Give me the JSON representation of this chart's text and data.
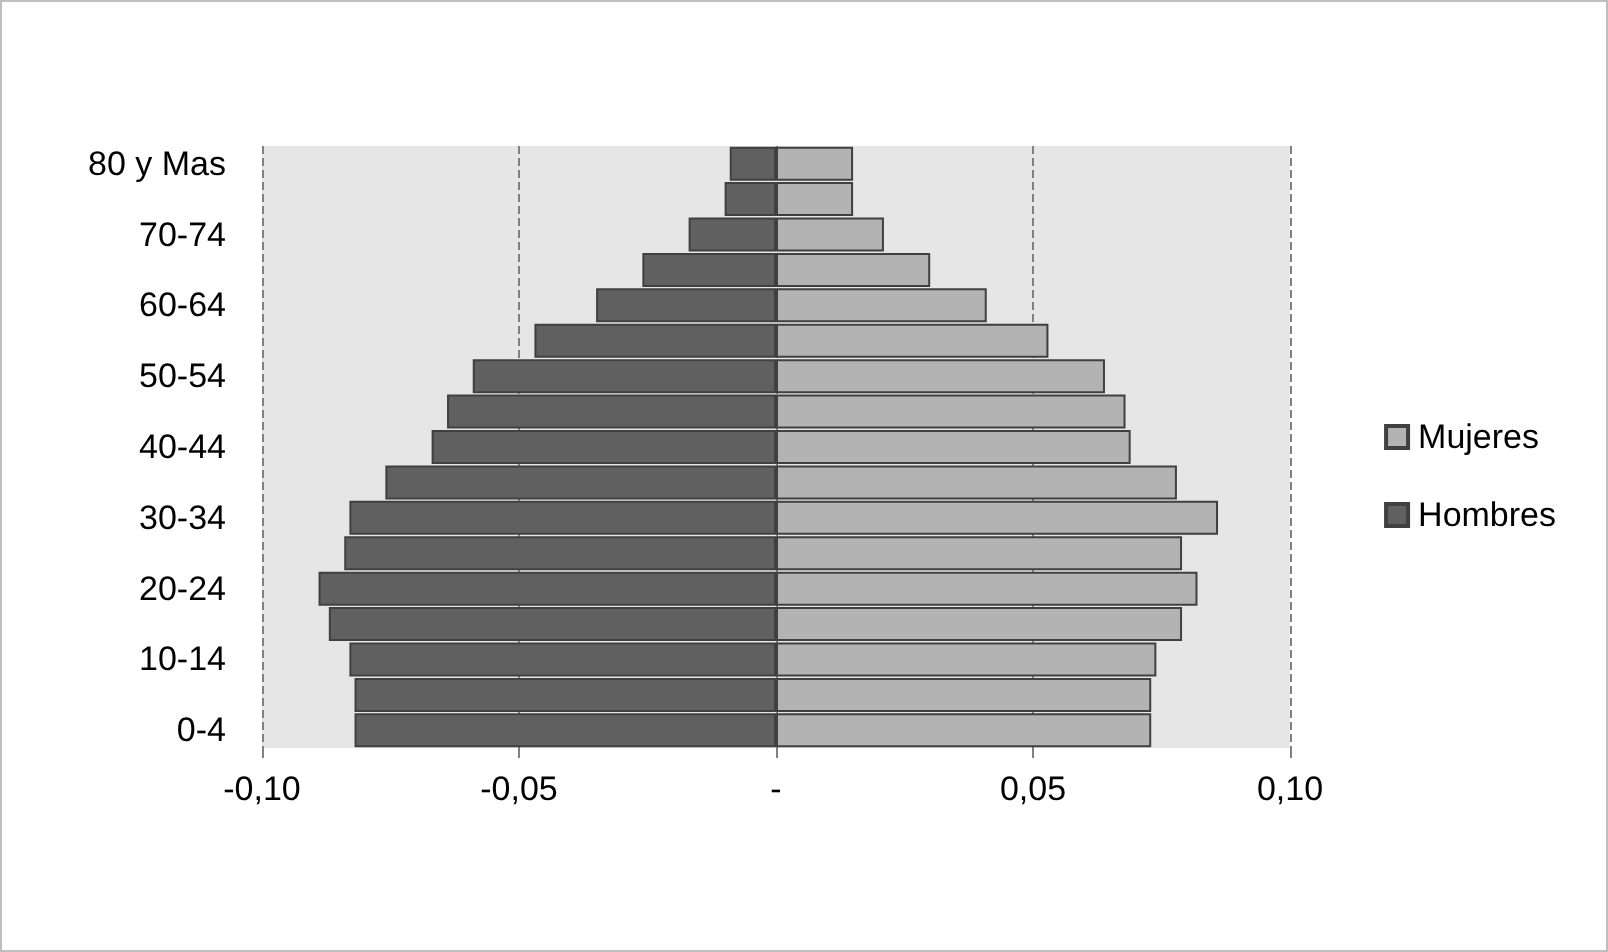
{
  "chart_data": {
    "type": "bar",
    "orientation": "horizontal",
    "categories": [
      "80 y Mas",
      null,
      "70-74",
      null,
      "60-64",
      null,
      "50-54",
      null,
      "40-44",
      null,
      "30-34",
      null,
      "20-24",
      null,
      "10-14",
      null,
      "0-4"
    ],
    "series": [
      {
        "name": "Mujeres",
        "color": "#b3b3b3",
        "values": [
          0.015,
          0.015,
          0.021,
          0.03,
          0.041,
          0.053,
          0.064,
          0.068,
          0.069,
          0.078,
          0.086,
          0.079,
          0.082,
          0.079,
          0.074,
          0.073,
          0.073
        ]
      },
      {
        "name": "Hombres",
        "color": "#606060",
        "values": [
          -0.009,
          -0.01,
          -0.017,
          -0.026,
          -0.035,
          -0.047,
          -0.059,
          -0.064,
          -0.067,
          -0.076,
          -0.083,
          -0.084,
          -0.089,
          -0.087,
          -0.083,
          -0.082,
          -0.082
        ]
      }
    ],
    "xlim": [
      -0.1,
      0.1
    ],
    "xticks": [
      {
        "value": -0.1,
        "label": "-0,10"
      },
      {
        "value": -0.05,
        "label": "-0,05"
      },
      {
        "value": 0,
        "label": "-"
      },
      {
        "value": 0.05,
        "label": "0,05"
      },
      {
        "value": 0.1,
        "label": "0,10"
      }
    ],
    "grid": "x",
    "legend": "right",
    "stacked": true
  }
}
